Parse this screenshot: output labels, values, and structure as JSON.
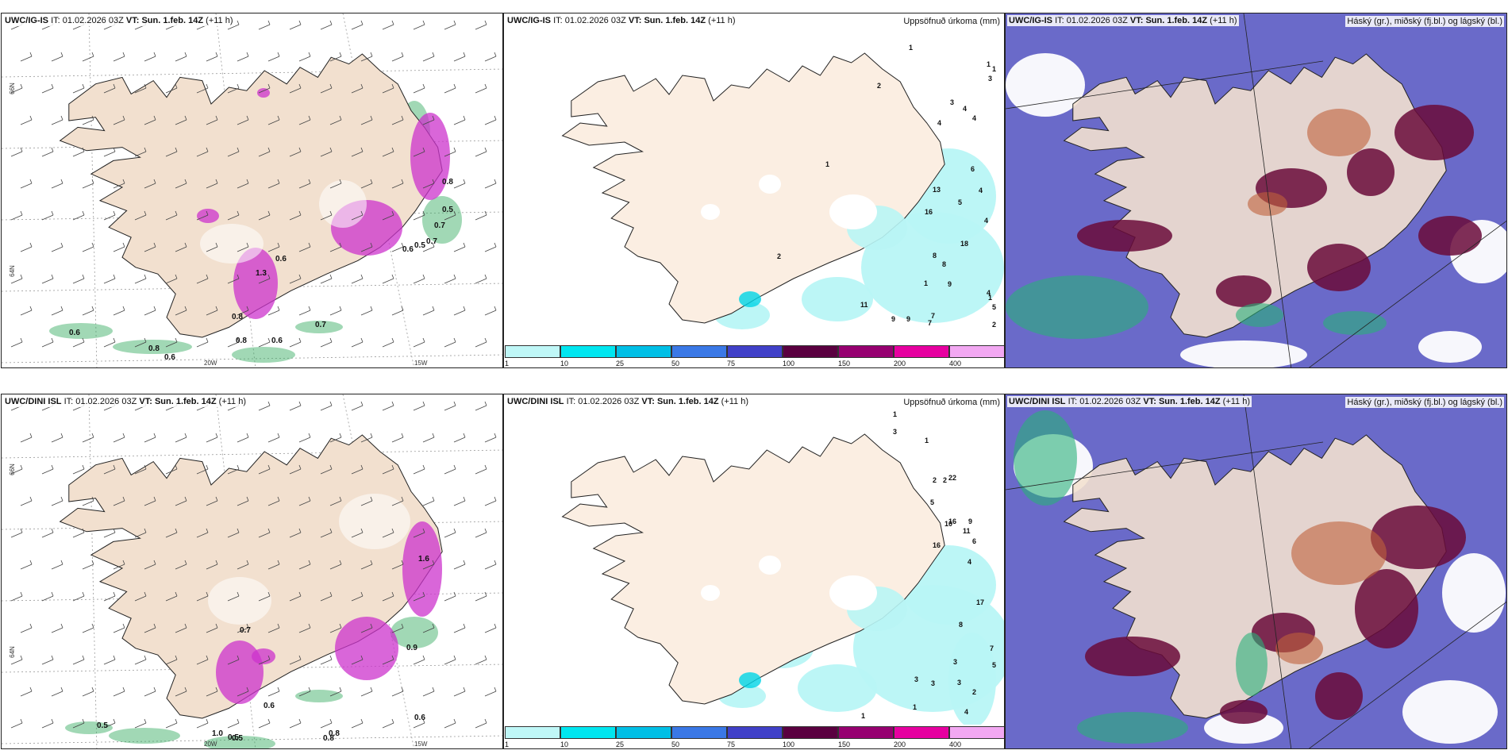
{
  "panels": [
    {
      "id": "p1",
      "model": "UWC/IG-IS",
      "it_label": "IT:",
      "it": "01.02.2026 03Z",
      "vt_label": "VT:",
      "vt": "Sun. 1.feb. 14Z",
      "lead": "(+11 h)",
      "type": "wind",
      "grid_labels": [
        "66N",
        "64N",
        "20W",
        "15W"
      ],
      "wind_labels": [
        "0.6",
        "0.8",
        "0.6",
        "0.7",
        "0.8",
        "0.5",
        "0.7",
        "0.8",
        "1.3",
        "0.6",
        "0.5",
        "0.6",
        "0.7",
        "0.6",
        "0.8"
      ]
    },
    {
      "id": "p2",
      "model": "UWC/IG-IS",
      "it_label": "IT:",
      "it": "01.02.2026 03Z",
      "vt_label": "VT:",
      "vt": "Sun. 1.feb. 14Z",
      "lead": "(+11 h)",
      "type": "precip",
      "legend_title": "Uppsöfnuð úrkoma (mm)",
      "precip_labels": [
        "1",
        "1",
        "1",
        "2",
        "3",
        "4",
        "4",
        "4",
        "6",
        "5",
        "4",
        "4",
        "8",
        "8",
        "9",
        "4",
        "5",
        "2",
        "11",
        "9",
        "9",
        "7",
        "7",
        "1",
        "1",
        "3",
        "1",
        "2",
        "13",
        "16",
        "18"
      ]
    },
    {
      "id": "p3",
      "model": "UWC/IG-IS",
      "it_label": "IT:",
      "it": "01.02.2026 03Z",
      "vt_label": "VT:",
      "vt": "Sun. 1.feb. 14Z",
      "lead": "(+11 h)",
      "type": "cloud",
      "legend_title": "Háský (gr.), miðský (fj.bl.) og lágský (bl.)"
    },
    {
      "id": "p4",
      "model": "UWC/DINI ISL",
      "it_label": "IT:",
      "it": "01.02.2026 03Z",
      "vt_label": "VT:",
      "vt": "Sun. 1.feb. 14Z",
      "lead": "(+11 h)",
      "type": "wind",
      "grid_labels": [
        "66N",
        "64N",
        "20W",
        "15W"
      ],
      "wind_labels": [
        "0.5",
        "0.8",
        "0.5",
        "1.0",
        "0.9",
        "0.6",
        "0.7",
        "1.6",
        "0.8",
        "0.6",
        "0.5"
      ]
    },
    {
      "id": "p5",
      "model": "UWC/DINI ISL",
      "it_label": "IT:",
      "it": "01.02.2026 03Z",
      "vt_label": "VT:",
      "vt": "Sun. 1.feb. 14Z",
      "lead": "(+11 h)",
      "type": "precip",
      "legend_title": "Uppsöfnuð úrkoma (mm)",
      "precip_labels": [
        "1",
        "1",
        "3",
        "1",
        "2",
        "2",
        "5",
        "9",
        "10",
        "6",
        "4",
        "17",
        "8",
        "7",
        "5",
        "3",
        "3",
        "3",
        "3",
        "4",
        "2",
        "1",
        "22",
        "16",
        "11",
        "16"
      ]
    },
    {
      "id": "p6",
      "model": "UWC/DINI ISL",
      "it_label": "IT:",
      "it": "01.02.2026 03Z",
      "vt_label": "VT:",
      "vt": "Sun. 1.feb. 14Z",
      "lead": "(+11 h)",
      "type": "cloud",
      "legend_title": "Háský (gr.), miðský (fj.bl.) og lágský (bl.)"
    }
  ],
  "colorbar": {
    "ticks": [
      "1",
      "10",
      "25",
      "50",
      "75",
      "100",
      "150",
      "200",
      "400"
    ],
    "colors": [
      "#bff7f7",
      "#00e6f0",
      "#00bfe6",
      "#3a78e6",
      "#4040c8",
      "#5a0040",
      "#960070",
      "#e600a0",
      "#f2a8f2"
    ]
  },
  "colors": {
    "land": "#f2e0cf",
    "land_precip": "#fbeee2",
    "coast": "#222222",
    "precip_light": "#b8f5f5",
    "snow_magenta": "#cc33cc",
    "green_wind": "#2ea85a",
    "high_cloud": "#6a0a3a",
    "mid_cloud": "#4a4ab8",
    "low_cloud": "#2ab07a"
  }
}
